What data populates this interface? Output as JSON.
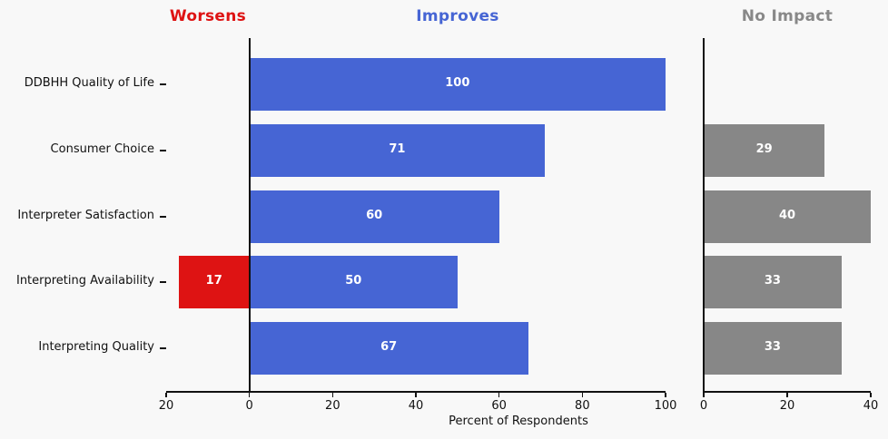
{
  "figure": {
    "background": "#f8f8f8"
  },
  "headers": [
    {
      "label": "Worsens",
      "color": "#de1313"
    },
    {
      "label": "Improves",
      "color": "#4665d4"
    },
    {
      "label": "No Impact",
      "color": "#888888"
    }
  ],
  "chart_data": {
    "type": "bar",
    "orientation": "horizontal",
    "title": "",
    "xlabel": "Percent of Respondents",
    "grid": false,
    "legend_position": "none",
    "bar_label_color": "#ffffff",
    "categories": [
      "DDBHH Quality of Life",
      "Consumer Choice",
      "Interpreter Satisfaction",
      "Interpreting Availability",
      "Interpreting Quality"
    ],
    "series": [
      {
        "name": "Worsens",
        "panel": "left",
        "direction": "left",
        "color": "#de1313",
        "values": [
          null,
          null,
          null,
          17,
          null
        ]
      },
      {
        "name": "Improves",
        "panel": "left",
        "direction": "right",
        "color": "#4665d4",
        "values": [
          100,
          71,
          60,
          50,
          67
        ]
      },
      {
        "name": "No Impact",
        "panel": "right",
        "direction": "right",
        "color": "#878787",
        "values": [
          null,
          29,
          40,
          33,
          33
        ]
      }
    ],
    "axes": {
      "left_panel": {
        "xlim": [
          -20,
          100
        ],
        "ticks": [
          -20,
          0,
          20,
          40,
          60,
          80,
          100
        ],
        "tick_labels": [
          "20",
          "0",
          "20",
          "40",
          "60",
          "80",
          "100"
        ],
        "zero_line": true
      },
      "right_panel": {
        "xlim": [
          0,
          40
        ],
        "ticks": [
          0,
          20,
          40
        ],
        "tick_labels": [
          "0",
          "20",
          "40"
        ],
        "zero_line": true
      }
    }
  }
}
